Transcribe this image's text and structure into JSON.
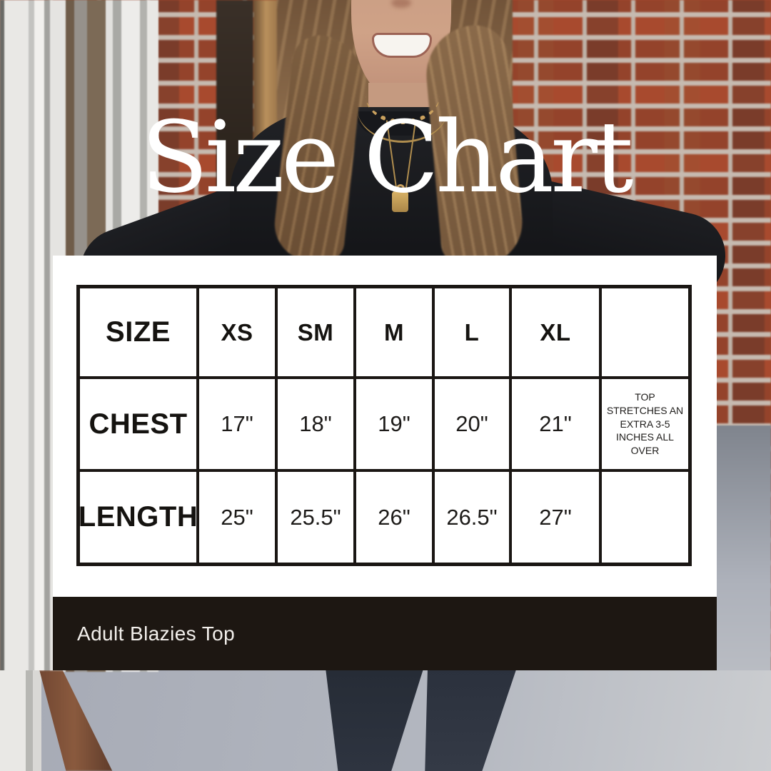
{
  "title": "Size Chart",
  "size_chart": {
    "header": [
      "SIZE",
      "XS",
      "SM",
      "M",
      "L",
      "XL",
      ""
    ],
    "rows": [
      {
        "label": "CHEST",
        "values": [
          "17\"",
          "18\"",
          "19\"",
          "20\"",
          "21\""
        ],
        "note": "TOP STRETCHES AN EXTRA 3-5 INCHES ALL OVER"
      },
      {
        "label": "LENGTH",
        "values": [
          "25\"",
          "25.5\"",
          "26\"",
          "26.5\"",
          "27\""
        ],
        "note": ""
      }
    ]
  },
  "footer": {
    "product_name": "Adult Blazies Top"
  },
  "chart_data": {
    "type": "table",
    "title": "Size Chart",
    "columns": [
      "XS",
      "SM",
      "M",
      "L",
      "XL"
    ],
    "rows": [
      {
        "measurement": "CHEST",
        "unit": "inches",
        "values": [
          17,
          18,
          19,
          20,
          21
        ]
      },
      {
        "measurement": "LENGTH",
        "unit": "inches",
        "values": [
          25,
          25.5,
          26,
          26.5,
          27
        ]
      }
    ],
    "notes": "TOP STRETCHES AN EXTRA 3-5 INCHES ALL OVER",
    "product": "Adult Blazies Top"
  },
  "colors": {
    "product_bar": "#1d1712",
    "panel": "#ffffff",
    "table_border": "#1a1613",
    "title_text": "#ffffff",
    "brick": "#a84a2e",
    "mortar": "#c6bab0",
    "floor": "#afb3bd",
    "sweater": "#17181c"
  }
}
